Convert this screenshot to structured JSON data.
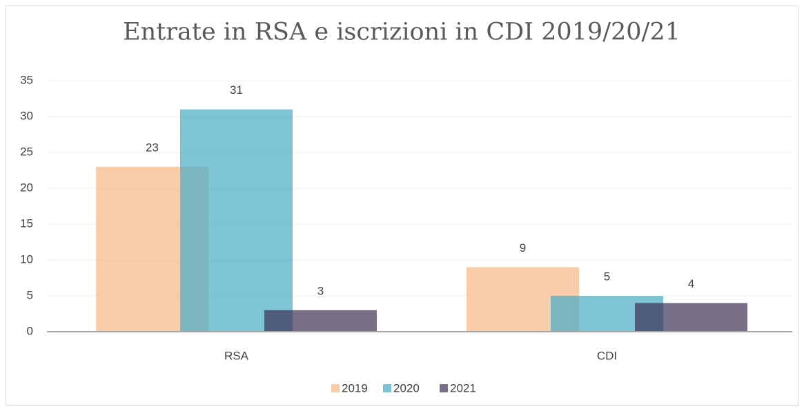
{
  "chart_data": {
    "type": "bar",
    "title": "Entrate in RSA e iscrizioni in CDI 2019/20/21",
    "categories": [
      "RSA",
      "CDI"
    ],
    "series": [
      {
        "name": "2019",
        "color": "#f7b886",
        "values": [
          23,
          9
        ]
      },
      {
        "name": "2020",
        "color": "#47abc6",
        "values": [
          31,
          5
        ]
      },
      {
        "name": "2021",
        "color": "#3e3256",
        "values": [
          3,
          4
        ]
      }
    ],
    "ylim": [
      0,
      35
    ],
    "yticks": [
      0,
      5,
      10,
      15,
      20,
      25,
      30,
      35
    ],
    "grid": true,
    "legend": "bottom"
  }
}
